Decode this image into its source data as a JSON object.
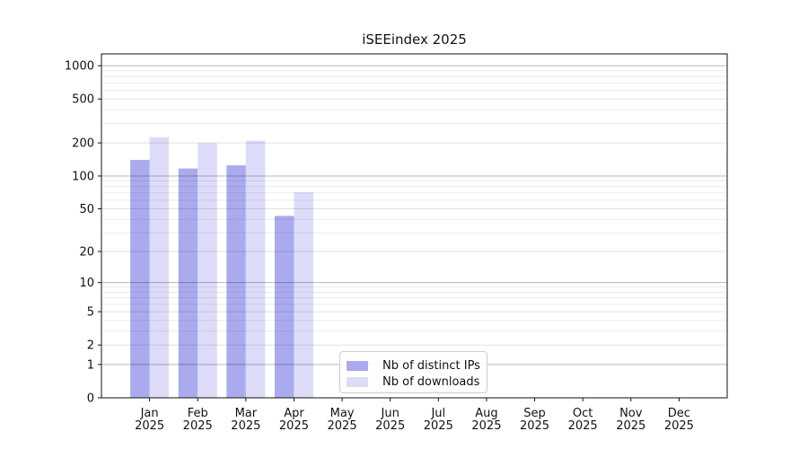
{
  "chart_data": {
    "type": "bar",
    "title": "iSEEindex 2025",
    "x_months": [
      "Jan",
      "Feb",
      "Mar",
      "Apr",
      "May",
      "Jun",
      "Jul",
      "Aug",
      "Sep",
      "Oct",
      "Nov",
      "Dec"
    ],
    "x_year": "2025",
    "series": [
      {
        "name": "Nb of distinct IPs",
        "color": "#aaaaee",
        "values": [
          140,
          117,
          125,
          43,
          0,
          0,
          0,
          0,
          0,
          0,
          0,
          0
        ]
      },
      {
        "name": "Nb of downloads",
        "color": "#dcdcf8",
        "values": [
          226,
          199,
          209,
          71,
          0,
          0,
          0,
          0,
          0,
          0,
          0,
          0
        ]
      }
    ],
    "y_scale": "log1p",
    "y_ticks": [
      0,
      1,
      2,
      5,
      10,
      20,
      50,
      100,
      200,
      500,
      1000
    ],
    "y_minor_ticks": [
      3,
      4,
      6,
      7,
      8,
      9,
      30,
      40,
      60,
      70,
      80,
      90,
      300,
      400,
      600,
      700,
      800,
      900
    ],
    "ylim": [
      0,
      1280
    ],
    "grid": "horizontal, drawn over bars",
    "legend_position": "inside lower-center",
    "colors": {
      "axis": "#111111",
      "text": "#111111",
      "grid_major": "rgba(0,0,0,0.28)",
      "grid_mid": "rgba(0,0,0,0.12)",
      "grid_minor": "rgba(0,0,0,0.08)"
    }
  }
}
